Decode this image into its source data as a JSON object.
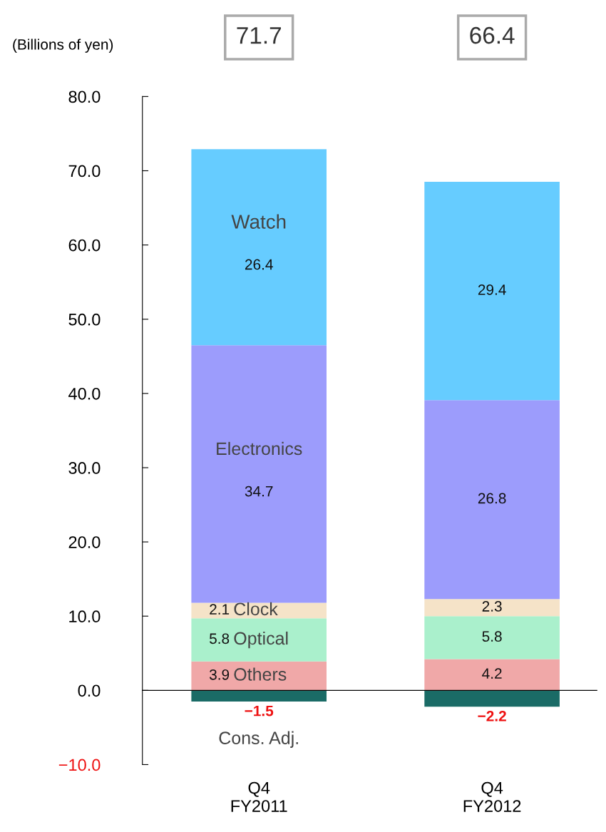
{
  "chart_data": {
    "type": "bar",
    "stacked": true,
    "ylabel": "(Billions of yen)",
    "categories": [
      "Q4\nFY2011",
      "Q4\nFY2012"
    ],
    "series": [
      {
        "name": "Others",
        "color": "#f0a8a8",
        "values": [
          3.9,
          4.2
        ]
      },
      {
        "name": "Optical",
        "color": "#aaf0cc",
        "values": [
          5.8,
          5.8
        ]
      },
      {
        "name": "Clock",
        "color": "#f5e3c8",
        "values": [
          2.1,
          2.3
        ]
      },
      {
        "name": "Electronics",
        "color": "#9c9cfc",
        "values": [
          34.7,
          26.8
        ]
      },
      {
        "name": "Watch",
        "color": "#66ccff",
        "values": [
          26.4,
          29.4
        ]
      },
      {
        "name": "Cons. Adj.",
        "color": "#1a6b66",
        "values": [
          -1.5,
          -2.2
        ]
      }
    ],
    "data_labels": true,
    "annotations": [
      "71.7",
      "66.4"
    ],
    "ylim": [
      -10,
      80
    ],
    "yticks": [
      {
        "value": -10,
        "label": "−10.0"
      },
      {
        "value": 0,
        "label": "0.0"
      },
      {
        "value": 10,
        "label": "10.0"
      },
      {
        "value": 20,
        "label": "20.0"
      },
      {
        "value": 30,
        "label": "30.0"
      },
      {
        "value": 40,
        "label": "40.0"
      },
      {
        "value": 50,
        "label": "50.0"
      },
      {
        "value": 60,
        "label": "60.0"
      },
      {
        "value": 70,
        "label": "70.0"
      },
      {
        "value": 80,
        "label": "80.0"
      }
    ],
    "legend": false
  }
}
